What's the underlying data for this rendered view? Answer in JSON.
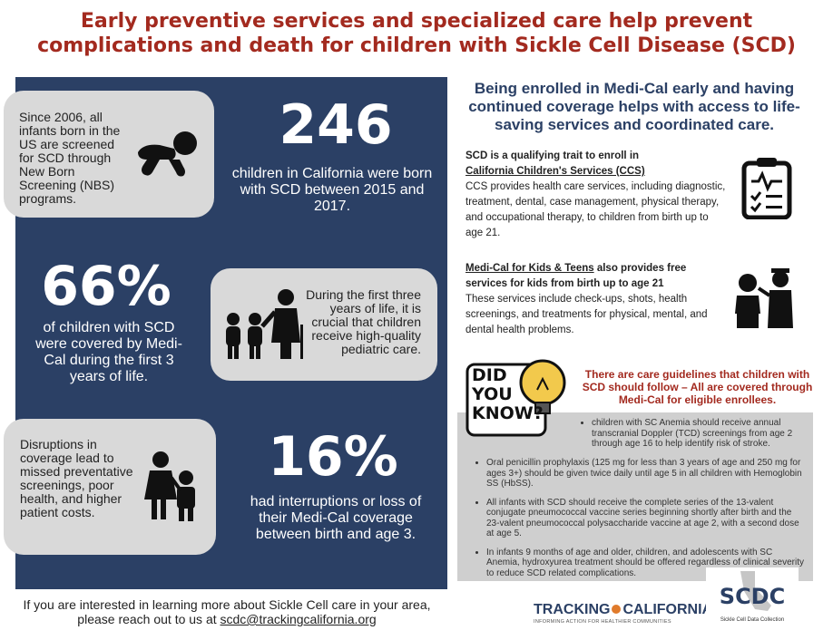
{
  "title": {
    "line1": "Early preventive services and specialized care help prevent",
    "line2": "complications and death for children with Sickle Cell Disease (SCD)"
  },
  "left": {
    "card1_text": "Since 2006, all infants born in the US are screened for SCD through New Born Screening (NBS) programs.",
    "stat1_number": "246",
    "stat1_text": "children in California were born with SCD between 2015 and 2017.",
    "stat2_number": "66%",
    "stat2_text": "of children with SCD were covered by Medi-Cal during the first 3 years of life.",
    "card2_text": "During the first three years of life, it is crucial that children receive high-quality pediatric care.",
    "card3_text": "Disruptions in coverage lead to missed preventative screenings, poor health, and higher patient costs.",
    "stat3_number": "16%",
    "stat3_text": "had interruptions or loss of their Medi-Cal coverage between birth and age 3."
  },
  "right": {
    "title": "Being enrolled in Medi-Cal early and having continued coverage helps with access to life-saving services and coordinated care.",
    "ccs_heading_1": "SCD is a qualifying trait to enroll in",
    "ccs_heading_2": "California Children's Services (CCS)",
    "ccs_body": "CCS provides health care services, including diagnostic, treatment, dental, case management, physical therapy, and occupational therapy, to children from birth up to age 21.",
    "mk_heading_link": "Medi-Cal for Kids & Teens",
    "mk_heading_rest": " also provides free services for kids from birth up to age 21",
    "mk_body": "These services include check-ups, shots, health screenings, and treatments for physical, mental, and dental health problems.",
    "did_you_know": [
      "DID",
      "YOU",
      "KNOW?"
    ],
    "guidelines_title": "There are care guidelines that children with SCD should follow – All are covered through Medi-Cal for eligible enrollees.",
    "bullets": [
      "children with SC Anemia should receive annual transcranial Doppler (TCD) screenings from age 2 through age 16 to help identify risk of stroke.",
      "Oral penicillin prophylaxis (125 mg for less than 3 years of age and 250 mg for ages 3+) should be given twice daily until age 5 in all children with Hemoglobin SS (HbSS).",
      "All infants with SCD should receive the complete series of the 13-valent conjugate pneumococcal vaccine series beginning shortly after birth and the 23-valent pneumococcal polysaccharide vaccine at age 2, with a second dose at age 5.",
      "In infants 9 months of age and older, children, and adolescents with SC Anemia, hydroxyurea treatment should be offered regardless of clinical severity to reduce SCD related complications."
    ]
  },
  "footer": {
    "line1": "If you are interested in learning more about Sickle Cell care in your area,",
    "line2_prefix": "please reach out to us at ",
    "email": "scdc@trackingcalifornia.org"
  },
  "logos": {
    "tracking_left": "TRACKING",
    "tracking_right": "CALIFORNIA",
    "tracking_tagline": "INFORMING ACTION FOR HEALTHIER COMMUNITIES",
    "scdc": "SCDC",
    "scdc_tagline": "Sickle Cell Data Collection"
  },
  "colors": {
    "title_red": "#a32a1f",
    "navy": "#2b4065",
    "card_gray": "#d9d9d9",
    "bulb_yellow": "#f2c94c"
  },
  "icons": [
    "baby-crawling-icon",
    "parent-children-icon",
    "mother-child-icon",
    "clipboard-checklist-icon",
    "doctor-patient-icon",
    "lightbulb-icon"
  ]
}
